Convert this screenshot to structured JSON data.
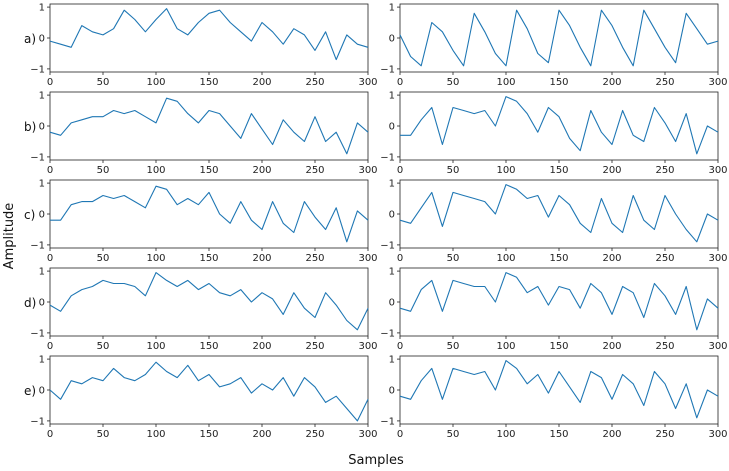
{
  "figure": {
    "ylabel": "Amplitude",
    "xlabel": "Samples",
    "row_labels": [
      "a)",
      "b)",
      "c)",
      "d)",
      "e)"
    ],
    "x_ticks": [
      0,
      50,
      100,
      150,
      200,
      250,
      300
    ],
    "y_ticks": [
      -1,
      0,
      1
    ],
    "line_color": "#1f77b4"
  },
  "chart_data": [
    {
      "type": "line",
      "row": "a)",
      "col": 1,
      "xlim": [
        0,
        300
      ],
      "ylim": [
        -1.1,
        1.1
      ],
      "x_step": 10,
      "values": [
        -0.1,
        -0.2,
        -0.3,
        0.4,
        0.2,
        0.1,
        0.3,
        0.9,
        0.6,
        0.2,
        0.6,
        0.95,
        0.3,
        0.1,
        0.5,
        0.8,
        0.9,
        0.5,
        0.2,
        -0.1,
        0.5,
        0.2,
        -0.2,
        0.3,
        0.1,
        -0.4,
        0.2,
        -0.7,
        0.1,
        -0.2,
        -0.3
      ]
    },
    {
      "type": "line",
      "row": "a)",
      "col": 2,
      "xlim": [
        0,
        300
      ],
      "ylim": [
        -1.1,
        1.1
      ],
      "x_step": 10,
      "values": [
        0.1,
        -0.6,
        -0.9,
        0.5,
        0.2,
        -0.4,
        -0.9,
        0.8,
        0.2,
        -0.5,
        -0.9,
        0.9,
        0.3,
        -0.5,
        -0.8,
        0.9,
        0.4,
        -0.3,
        -0.9,
        0.9,
        0.4,
        -0.3,
        -0.9,
        0.9,
        0.3,
        -0.3,
        -0.8,
        0.8,
        0.3,
        -0.2,
        -0.1
      ]
    },
    {
      "type": "line",
      "row": "b)",
      "col": 1,
      "xlim": [
        0,
        300
      ],
      "ylim": [
        -1.1,
        1.1
      ],
      "x_step": 10,
      "values": [
        -0.2,
        -0.3,
        0.1,
        0.2,
        0.3,
        0.3,
        0.5,
        0.4,
        0.5,
        0.3,
        0.1,
        0.9,
        0.8,
        0.4,
        0.1,
        0.5,
        0.4,
        0.0,
        -0.4,
        0.4,
        -0.1,
        -0.6,
        0.2,
        -0.2,
        -0.5,
        0.3,
        -0.5,
        -0.2,
        -0.9,
        0.1,
        -0.2
      ]
    },
    {
      "type": "line",
      "row": "b)",
      "col": 2,
      "xlim": [
        0,
        300
      ],
      "ylim": [
        -1.1,
        1.1
      ],
      "x_step": 10,
      "values": [
        -0.3,
        -0.3,
        0.2,
        0.6,
        -0.6,
        0.6,
        0.5,
        0.4,
        0.5,
        0.0,
        0.95,
        0.8,
        0.4,
        -0.2,
        0.6,
        0.3,
        -0.4,
        -0.8,
        0.5,
        -0.2,
        -0.6,
        0.5,
        -0.3,
        -0.5,
        0.6,
        0.1,
        -0.5,
        0.4,
        -0.9,
        0.0,
        -0.2
      ]
    },
    {
      "type": "line",
      "row": "c)",
      "col": 1,
      "xlim": [
        0,
        300
      ],
      "ylim": [
        -1.1,
        1.1
      ],
      "x_step": 10,
      "values": [
        -0.2,
        -0.2,
        0.3,
        0.4,
        0.4,
        0.6,
        0.5,
        0.6,
        0.4,
        0.2,
        0.9,
        0.8,
        0.3,
        0.5,
        0.3,
        0.7,
        0.0,
        -0.3,
        0.4,
        -0.2,
        -0.5,
        0.4,
        -0.3,
        -0.6,
        0.4,
        -0.1,
        -0.5,
        0.2,
        -0.9,
        0.1,
        -0.2
      ]
    },
    {
      "type": "line",
      "row": "c)",
      "col": 2,
      "xlim": [
        0,
        300
      ],
      "ylim": [
        -1.1,
        1.1
      ],
      "x_step": 10,
      "values": [
        -0.2,
        -0.3,
        0.2,
        0.7,
        -0.4,
        0.7,
        0.6,
        0.5,
        0.4,
        0.0,
        0.95,
        0.8,
        0.5,
        0.6,
        -0.1,
        0.6,
        0.3,
        -0.3,
        -0.6,
        0.5,
        -0.3,
        -0.6,
        0.6,
        -0.2,
        -0.5,
        0.6,
        0.0,
        -0.5,
        -0.9,
        0.0,
        -0.2
      ]
    },
    {
      "type": "line",
      "row": "d)",
      "col": 1,
      "xlim": [
        0,
        300
      ],
      "ylim": [
        -1.1,
        1.1
      ],
      "x_step": 10,
      "values": [
        -0.1,
        -0.3,
        0.2,
        0.4,
        0.5,
        0.7,
        0.6,
        0.6,
        0.5,
        0.2,
        0.95,
        0.7,
        0.5,
        0.7,
        0.4,
        0.6,
        0.3,
        0.2,
        0.4,
        0.0,
        0.3,
        0.1,
        -0.4,
        0.3,
        -0.2,
        -0.5,
        0.3,
        -0.1,
        -0.6,
        -0.9,
        -0.2
      ]
    },
    {
      "type": "line",
      "row": "d)",
      "col": 2,
      "xlim": [
        0,
        300
      ],
      "ylim": [
        -1.1,
        1.1
      ],
      "x_step": 10,
      "values": [
        -0.2,
        -0.3,
        0.4,
        0.7,
        -0.3,
        0.7,
        0.6,
        0.5,
        0.5,
        0.0,
        0.95,
        0.8,
        0.3,
        0.5,
        -0.1,
        0.5,
        0.4,
        -0.2,
        0.6,
        0.3,
        -0.4,
        0.5,
        0.3,
        -0.5,
        0.6,
        0.2,
        -0.4,
        0.5,
        -0.9,
        0.1,
        -0.2
      ]
    },
    {
      "type": "line",
      "row": "e)",
      "col": 1,
      "xlim": [
        0,
        300
      ],
      "ylim": [
        -1.1,
        1.1
      ],
      "x_step": 10,
      "values": [
        0.0,
        -0.3,
        0.3,
        0.2,
        0.4,
        0.3,
        0.7,
        0.4,
        0.3,
        0.5,
        0.9,
        0.6,
        0.4,
        0.8,
        0.3,
        0.5,
        0.1,
        0.2,
        0.4,
        -0.1,
        0.2,
        0.0,
        0.4,
        -0.2,
        0.4,
        0.1,
        -0.4,
        -0.2,
        -0.6,
        -1.0,
        -0.3
      ]
    },
    {
      "type": "line",
      "row": "e)",
      "col": 2,
      "xlim": [
        0,
        300
      ],
      "ylim": [
        -1.1,
        1.1
      ],
      "x_step": 10,
      "values": [
        -0.2,
        -0.3,
        0.3,
        0.7,
        -0.3,
        0.7,
        0.6,
        0.5,
        0.6,
        0.0,
        0.95,
        0.7,
        0.2,
        0.5,
        -0.1,
        0.6,
        0.1,
        -0.4,
        0.6,
        0.4,
        -0.3,
        0.5,
        0.2,
        -0.5,
        0.6,
        0.2,
        -0.6,
        0.2,
        -0.9,
        0.0,
        -0.2
      ]
    }
  ]
}
